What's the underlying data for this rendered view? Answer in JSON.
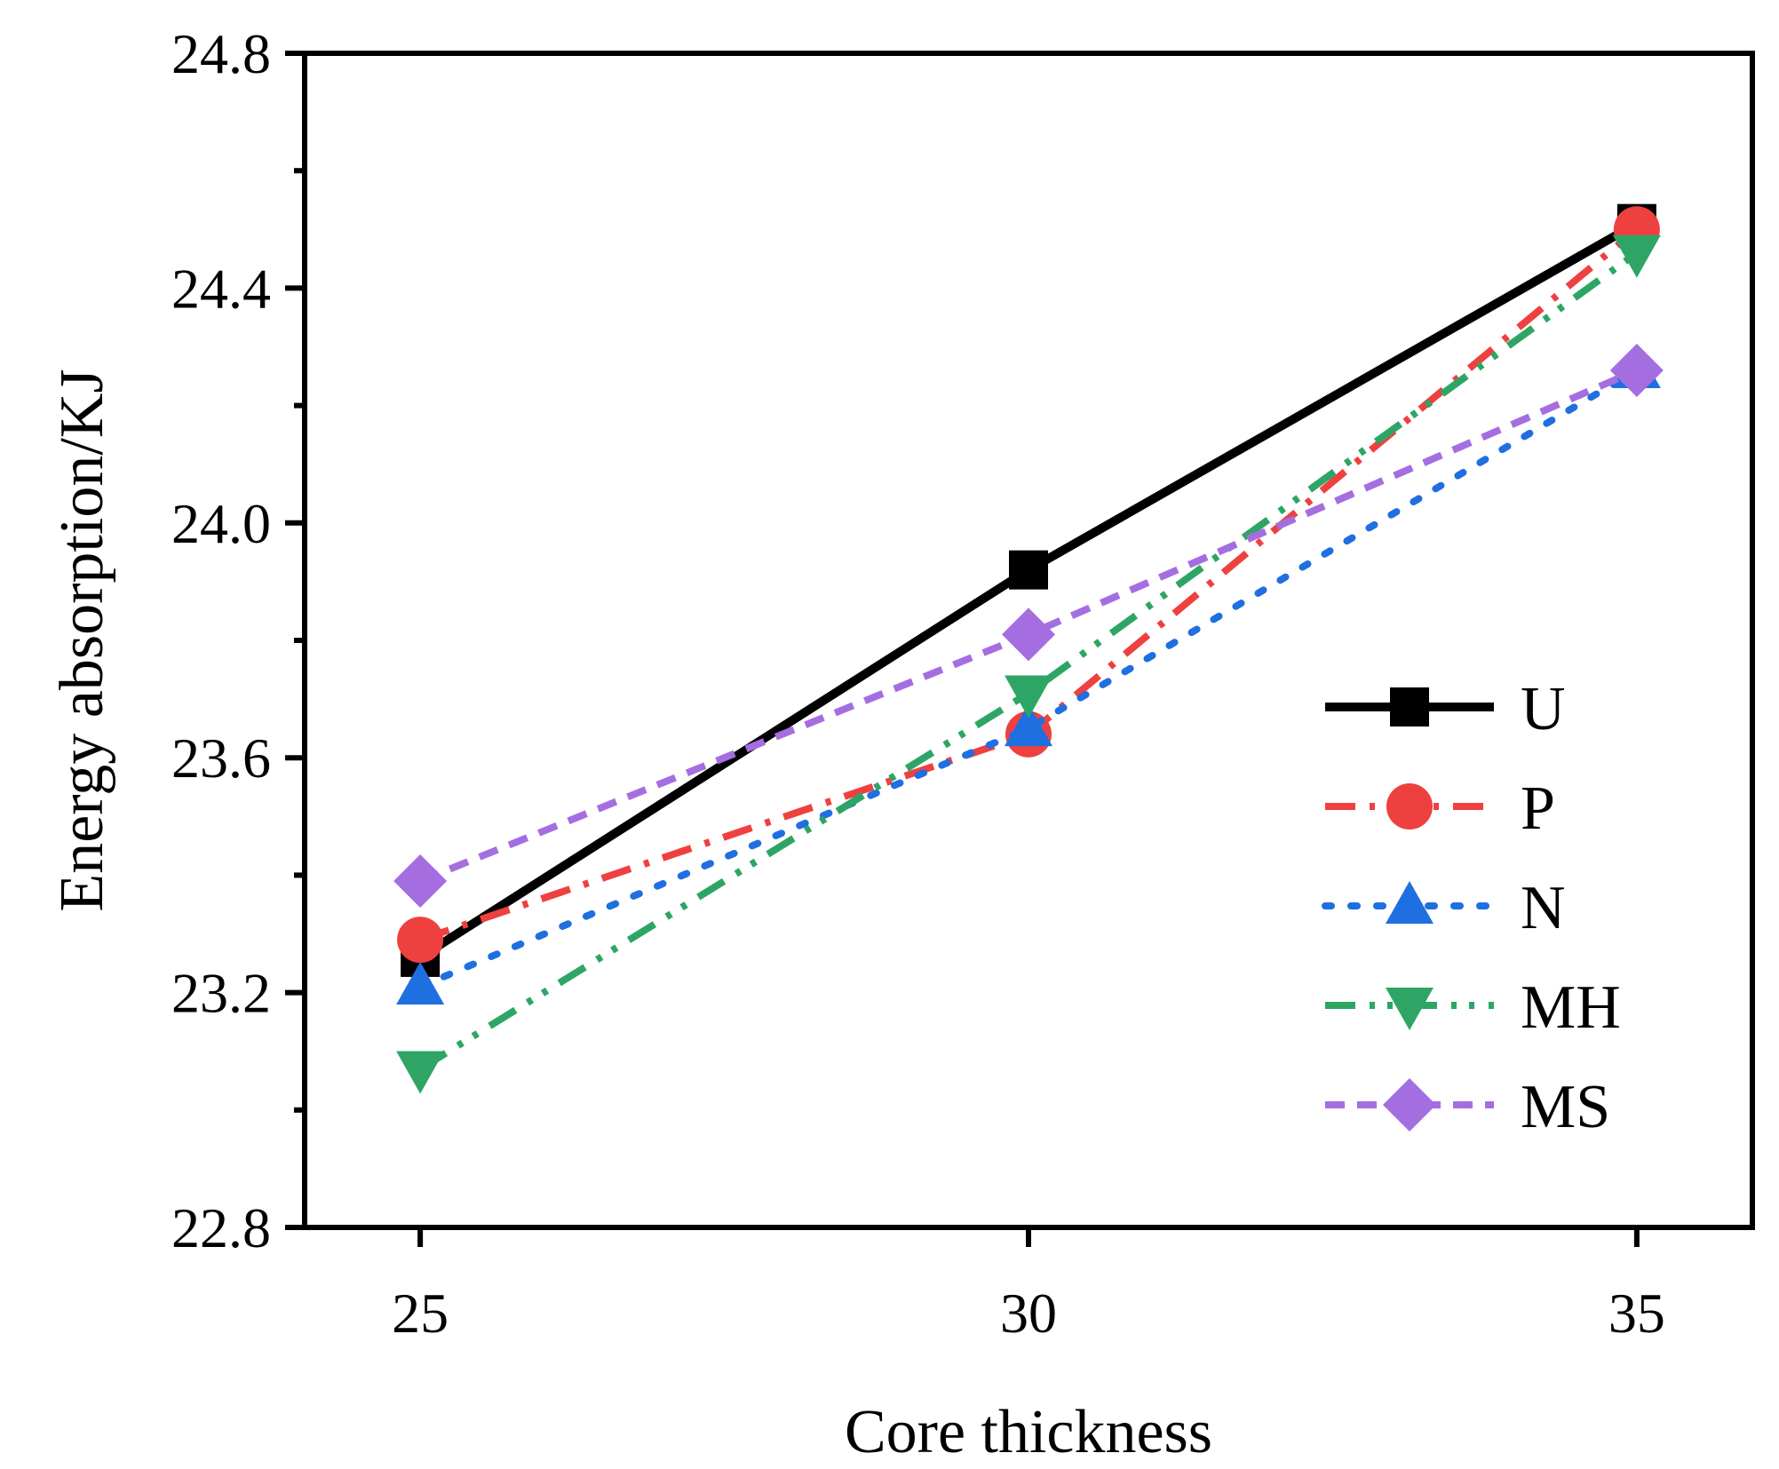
{
  "chart_data": {
    "type": "line",
    "title": "",
    "xlabel": "Core thickness",
    "ylabel": "Energy absorption/KJ",
    "x": [
      25,
      30,
      35
    ],
    "x_tick_labels": [
      "25",
      "30",
      "35"
    ],
    "xlim": [
      24.05,
      35.95
    ],
    "ylim": [
      22.8,
      24.8
    ],
    "y_ticks": [
      22.8,
      23.2,
      23.6,
      24.0,
      24.4,
      24.8
    ],
    "y_tick_labels": [
      "22.8",
      "23.2",
      "23.6",
      "24.0",
      "24.4",
      "24.8"
    ],
    "grid": false,
    "legend_position": "right",
    "series": [
      {
        "name": "U",
        "values": [
          23.26,
          23.92,
          24.51
        ],
        "color": "#000000",
        "marker": "square",
        "line_style": "solid"
      },
      {
        "name": "P",
        "values": [
          23.29,
          23.64,
          24.5
        ],
        "color": "#ef4040",
        "marker": "circle",
        "line_style": "dash-dot"
      },
      {
        "name": "N",
        "values": [
          23.21,
          23.65,
          24.26
        ],
        "color": "#1f6fe0",
        "marker": "triangle-up",
        "line_style": "dotted"
      },
      {
        "name": "MH",
        "values": [
          23.07,
          23.71,
          24.46
        ],
        "color": "#2ea565",
        "marker": "triangle-down",
        "line_style": "dash-dot-dot"
      },
      {
        "name": "MS",
        "values": [
          23.39,
          23.81,
          24.26
        ],
        "color": "#a56ee0",
        "marker": "diamond",
        "line_style": "short-dash"
      }
    ]
  }
}
